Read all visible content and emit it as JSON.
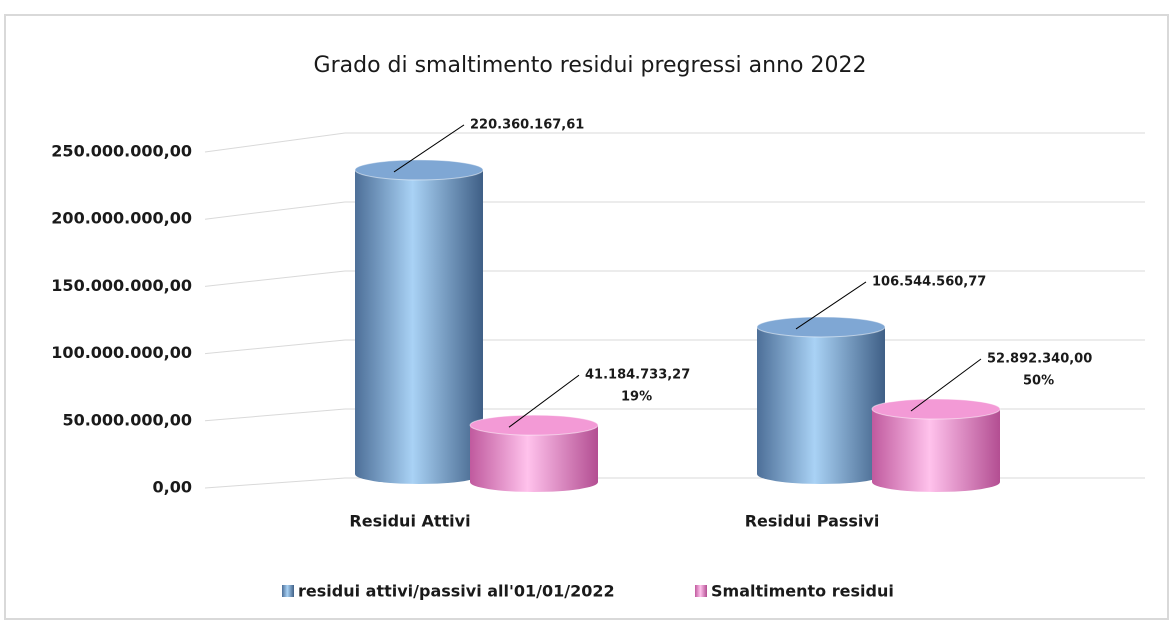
{
  "chart_data": {
    "type": "bar",
    "title": "Grado di smaltimento residui pregressi anno 2022",
    "categories": [
      "Residui Attivi",
      "Residui Passivi"
    ],
    "series": [
      {
        "name": "residui attivi/passivi all'01/01/2022",
        "color": "#7fa7d4",
        "values": [
          220360167.61,
          106544560.77
        ],
        "value_labels": [
          "220.360.167,61",
          "106.544.560,77"
        ]
      },
      {
        "name": "Smaltimento residui",
        "color": "#f39ad6",
        "values": [
          41184733.27,
          52892340.0
        ],
        "value_labels": [
          "41.184.733,27",
          "52.892.340,00"
        ],
        "share_labels": [
          "19%",
          "50%"
        ]
      }
    ],
    "ylim": [
      0,
      250000000
    ],
    "yticks": [
      {
        "value": 0,
        "label": "0,00"
      },
      {
        "value": 50000000,
        "label": "50.000.000,00"
      },
      {
        "value": 100000000,
        "label": "100.000.000,00"
      },
      {
        "value": 150000000,
        "label": "150.000.000,00"
      },
      {
        "value": 200000000,
        "label": "200.000.000,00"
      },
      {
        "value": 250000000,
        "label": "250.000.000,00"
      }
    ],
    "grid": true,
    "legend": "bottom"
  }
}
